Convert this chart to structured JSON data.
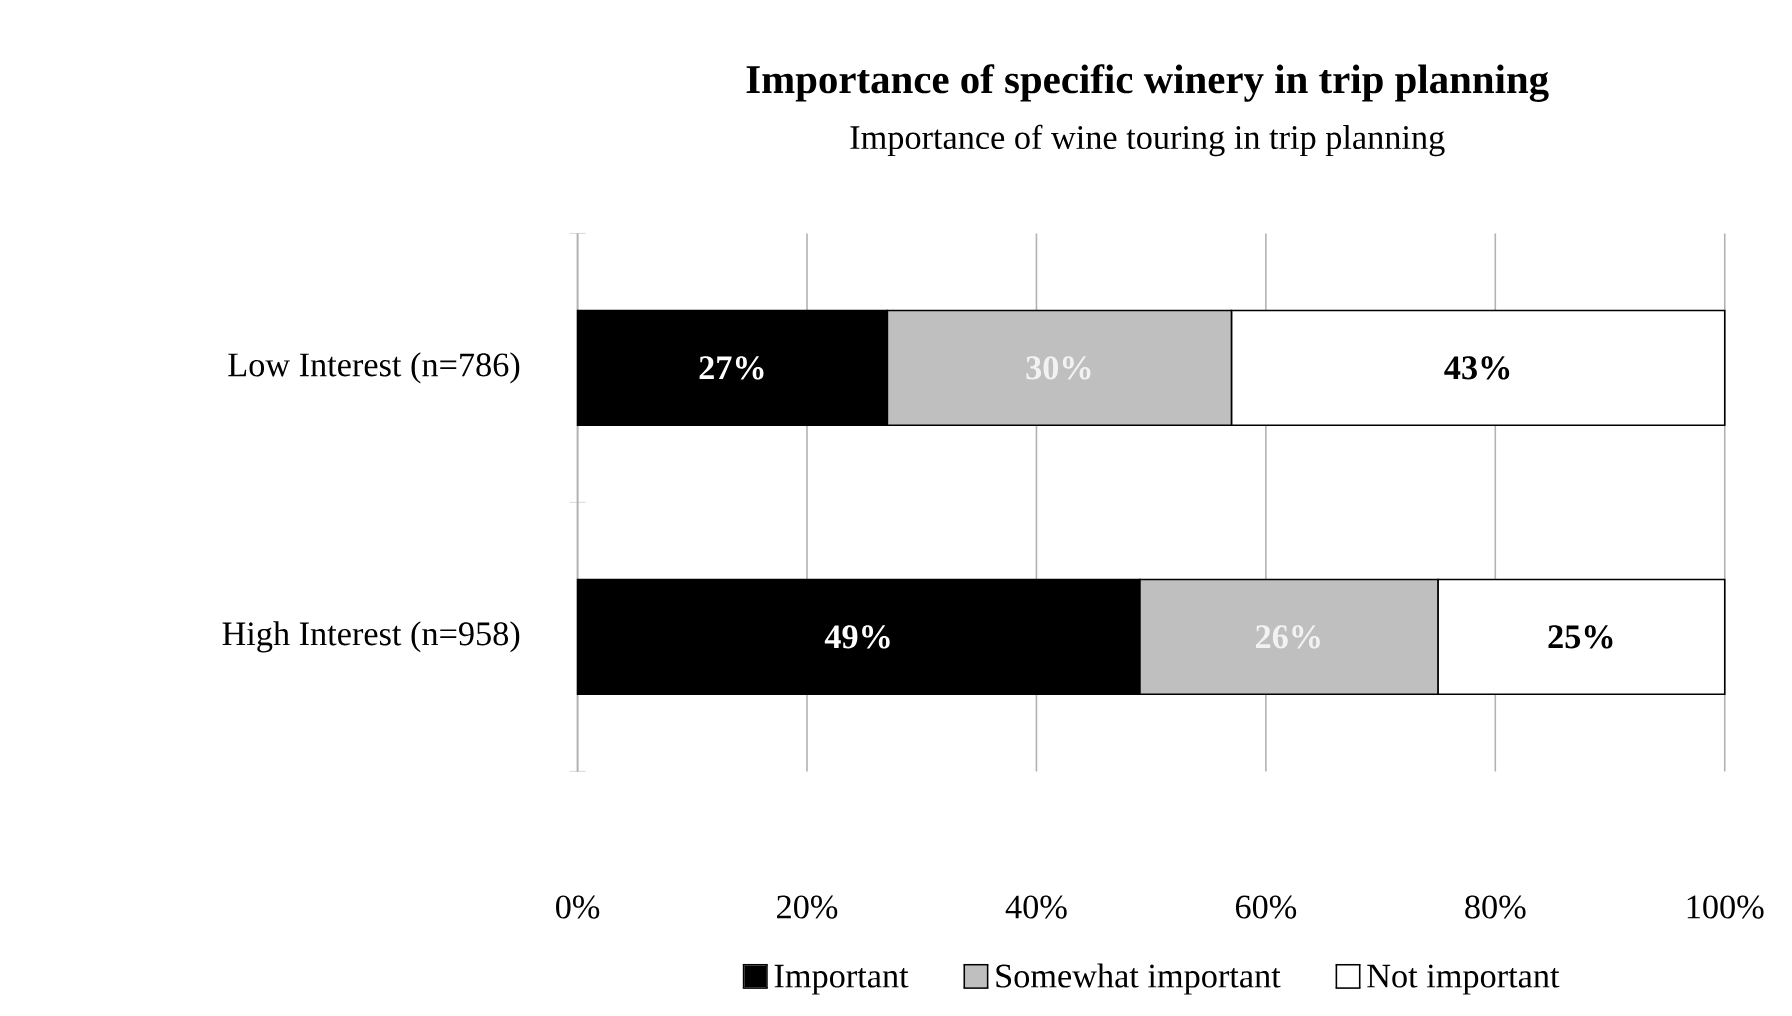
{
  "chart_data": {
    "type": "bar",
    "orientation": "horizontal",
    "stacked": true,
    "title": "Importance of specific winery in trip planning",
    "subtitle": "Importance of wine touring in trip planning",
    "categories": [
      "Low Interest  (n=786)",
      "High Interest  (n=958)"
    ],
    "series": [
      {
        "name": "Important",
        "color": "#000000",
        "values": [
          27,
          49
        ],
        "value_labels": [
          "27%",
          "49%"
        ]
      },
      {
        "name": "Somewhat important",
        "color": "#bfbfbf",
        "values": [
          30,
          26
        ],
        "value_labels": [
          "30%",
          "26%"
        ]
      },
      {
        "name": "Not important",
        "color": "#ffffff",
        "values": [
          43,
          25
        ],
        "value_labels": [
          "43%",
          "25%"
        ]
      }
    ],
    "xlim": [
      0,
      100
    ],
    "xticks": [
      {
        "value": 0,
        "label": "0%"
      },
      {
        "value": 20,
        "label": "20%"
      },
      {
        "value": 40,
        "label": "40%"
      },
      {
        "value": 60,
        "label": "60%"
      },
      {
        "value": 80,
        "label": "80%"
      },
      {
        "value": 100,
        "label": "100%"
      }
    ],
    "grid": "x",
    "legend": "bottom"
  }
}
